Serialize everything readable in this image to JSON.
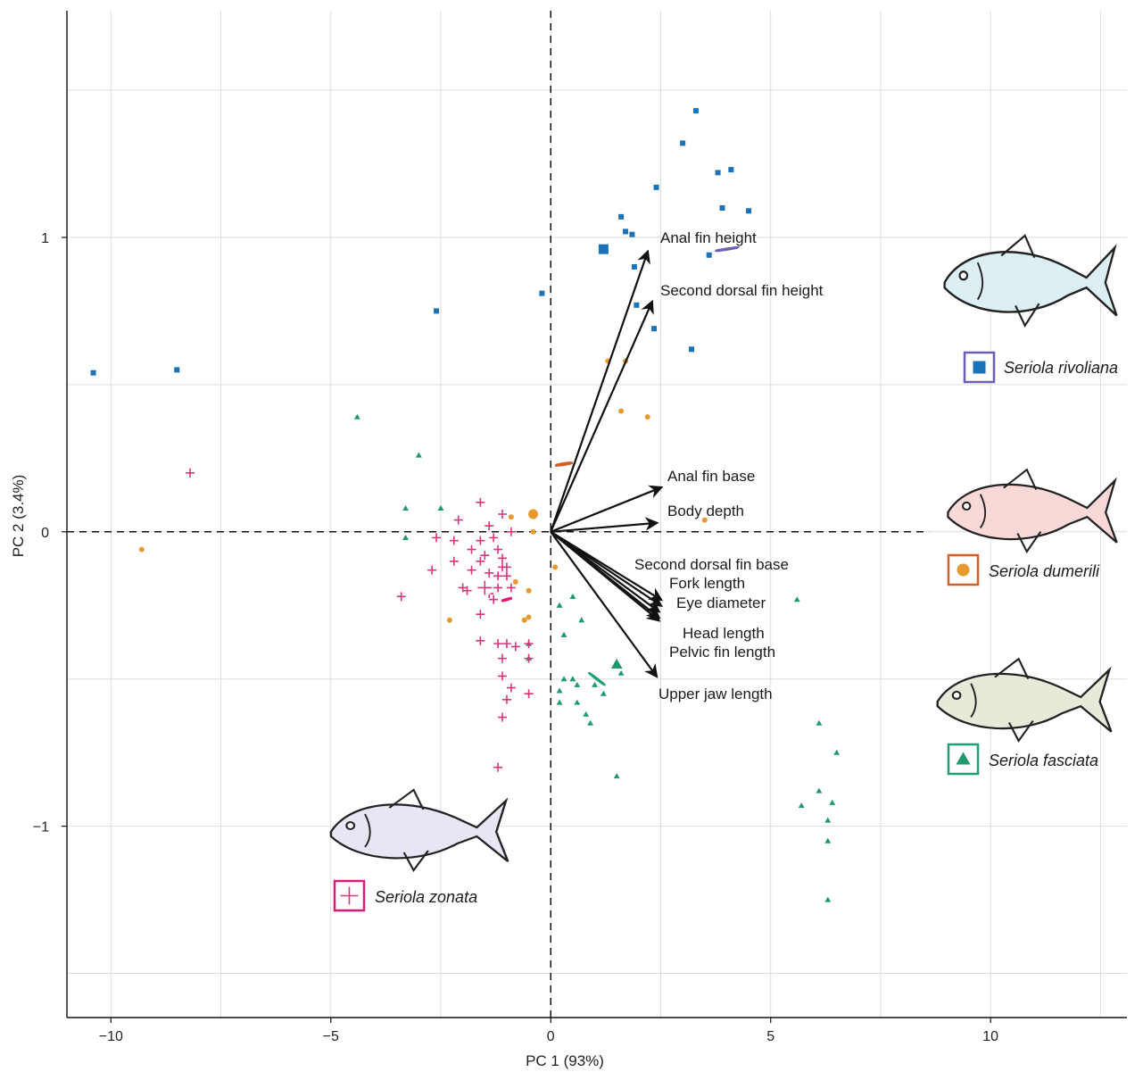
{
  "chart_data": {
    "type": "scatter",
    "xlabel": "PC 1 (93%)",
    "ylabel": "PC 2 (3.4%)",
    "xlim": [
      -11,
      13.1
    ],
    "ylim": [
      -1.65,
      1.77
    ],
    "x_ticks": [
      -10,
      -5,
      0,
      5,
      10
    ],
    "x_tick_labels": [
      "−10",
      "−5",
      "0",
      "5",
      "10"
    ],
    "y_ticks": [
      -1,
      0,
      1
    ],
    "y_tick_labels": [
      "−1",
      "0",
      "1"
    ],
    "grid": true,
    "reference_lines": [
      "x=0",
      "y=0"
    ],
    "series": [
      {
        "name": "Seriola rivoliana",
        "marker": "square",
        "color": "#1a72b8",
        "ellipse_color": "#6a5fb0",
        "ellipse_fill": "#d8eff4",
        "centroid": [
          1.2,
          0.96
        ],
        "ellipse": {
          "cx": 4.0,
          "cy": 0.96,
          "rx": 12.0,
          "ry": 0.42,
          "angle_deg": 8.8
        },
        "points": [
          [
            3.3,
            1.43
          ],
          [
            3.0,
            1.32
          ],
          [
            3.8,
            1.22
          ],
          [
            4.1,
            1.23
          ],
          [
            2.4,
            1.17
          ],
          [
            3.9,
            1.1
          ],
          [
            4.5,
            1.09
          ],
          [
            1.6,
            1.07
          ],
          [
            1.7,
            1.02
          ],
          [
            1.85,
            1.01
          ],
          [
            3.6,
            0.94
          ],
          [
            1.9,
            0.9
          ],
          [
            -0.2,
            0.81
          ],
          [
            1.95,
            0.77
          ],
          [
            2.35,
            0.69
          ],
          [
            3.2,
            0.62
          ],
          [
            -2.6,
            0.75
          ],
          [
            -8.5,
            0.55
          ],
          [
            -10.4,
            0.54
          ]
        ]
      },
      {
        "name": "Seriola dumerili",
        "marker": "circle",
        "color": "#e89a2e",
        "ellipse_color": "#d35f28",
        "ellipse_fill": "#fde3dc",
        "centroid": [
          -0.4,
          0.06
        ],
        "ellipse": {
          "cx": 0.3,
          "cy": 0.23,
          "rx": 8.7,
          "ry": 0.76,
          "angle_deg": 9.0
        },
        "points": [
          [
            1.3,
            0.58
          ],
          [
            1.7,
            0.58
          ],
          [
            1.6,
            0.41
          ],
          [
            2.2,
            0.39
          ],
          [
            3.5,
            0.04
          ],
          [
            -0.9,
            0.05
          ],
          [
            -0.4,
            0.0
          ],
          [
            -9.3,
            -0.06
          ],
          [
            0.1,
            -0.12
          ],
          [
            -0.8,
            -0.17
          ],
          [
            -0.5,
            -0.2
          ],
          [
            -0.5,
            -0.29
          ],
          [
            -0.6,
            -0.3
          ],
          [
            -2.3,
            -0.3
          ]
        ]
      },
      {
        "name": "Seriola fasciata",
        "marker": "triangle",
        "color": "#1f9a6b",
        "ellipse_color": "#1f9e77",
        "ellipse_fill": "#e8efde",
        "centroid": [
          1.5,
          -0.45
        ],
        "ellipse": {
          "cx": 1.05,
          "cy": -0.5,
          "rx": 10.6,
          "ry": 0.37,
          "angle_deg": -37.4
        },
        "points": [
          [
            -4.4,
            0.39
          ],
          [
            -3.0,
            0.26
          ],
          [
            -3.3,
            0.08
          ],
          [
            -2.5,
            0.08
          ],
          [
            -3.3,
            -0.02
          ],
          [
            0.5,
            -0.22
          ],
          [
            0.2,
            -0.25
          ],
          [
            0.7,
            -0.3
          ],
          [
            0.3,
            -0.35
          ],
          [
            -0.5,
            -0.38
          ],
          [
            -0.5,
            -0.43
          ],
          [
            1.6,
            -0.48
          ],
          [
            0.3,
            -0.5
          ],
          [
            0.5,
            -0.5
          ],
          [
            0.6,
            -0.52
          ],
          [
            1.0,
            -0.52
          ],
          [
            0.6,
            -0.58
          ],
          [
            0.2,
            -0.54
          ],
          [
            1.2,
            -0.55
          ],
          [
            0.2,
            -0.58
          ],
          [
            5.6,
            -0.23
          ],
          [
            0.8,
            -0.62
          ],
          [
            0.9,
            -0.65
          ],
          [
            1.5,
            -0.83
          ],
          [
            6.1,
            -0.65
          ],
          [
            6.5,
            -0.75
          ],
          [
            6.1,
            -0.88
          ],
          [
            6.4,
            -0.92
          ],
          [
            5.7,
            -0.93
          ],
          [
            6.3,
            -0.98
          ],
          [
            6.3,
            -1.05
          ],
          [
            6.3,
            -1.25
          ]
        ]
      },
      {
        "name": "Seriola zonata",
        "marker": "plus",
        "color": "#d9357d",
        "ellipse_color": "#e0187a",
        "ellipse_fill": "#e6d7d2",
        "centroid": [
          -1.5,
          -0.19
        ],
        "ellipse": {
          "cx": -1.0,
          "cy": -0.23,
          "rx": 5.1,
          "ry": 0.47,
          "angle_deg": 16.4
        },
        "points": [
          [
            -8.2,
            0.2
          ],
          [
            -1.6,
            0.1
          ],
          [
            -1.1,
            0.06
          ],
          [
            -2.1,
            0.04
          ],
          [
            -1.4,
            0.02
          ],
          [
            -0.9,
            0.0
          ],
          [
            -2.2,
            -0.03
          ],
          [
            -1.6,
            -0.03
          ],
          [
            -1.3,
            -0.02
          ],
          [
            -2.6,
            -0.02
          ],
          [
            -1.8,
            -0.06
          ],
          [
            -1.2,
            -0.06
          ],
          [
            -1.5,
            -0.08
          ],
          [
            -2.2,
            -0.1
          ],
          [
            -1.6,
            -0.1
          ],
          [
            -1.1,
            -0.09
          ],
          [
            -1.8,
            -0.13
          ],
          [
            -1.1,
            -0.12
          ],
          [
            -1.4,
            -0.14
          ],
          [
            -1.0,
            -0.12
          ],
          [
            -2.7,
            -0.13
          ],
          [
            -1.2,
            -0.15
          ],
          [
            -1.0,
            -0.15
          ],
          [
            -2.0,
            -0.19
          ],
          [
            -1.2,
            -0.19
          ],
          [
            -0.9,
            -0.19
          ],
          [
            -1.9,
            -0.2
          ],
          [
            -1.4,
            -0.21
          ],
          [
            -3.4,
            -0.22
          ],
          [
            -1.6,
            -0.28
          ],
          [
            -1.3,
            -0.23
          ],
          [
            -1.6,
            -0.37
          ],
          [
            -1.2,
            -0.38
          ],
          [
            -1.0,
            -0.38
          ],
          [
            -0.5,
            -0.38
          ],
          [
            -0.8,
            -0.39
          ],
          [
            -1.1,
            -0.43
          ],
          [
            -0.5,
            -0.43
          ],
          [
            -1.1,
            -0.49
          ],
          [
            -0.9,
            -0.53
          ],
          [
            -0.5,
            -0.55
          ],
          [
            -1.0,
            -0.57
          ],
          [
            -1.1,
            -0.63
          ],
          [
            -1.2,
            -0.8
          ]
        ]
      }
    ],
    "loadings": [
      {
        "label": "Anal fin height",
        "x": 2.2,
        "y": 0.95
      },
      {
        "label": "Second dorsal fin height",
        "x": 2.3,
        "y": 0.78
      },
      {
        "label": "Anal fin base",
        "x": 2.5,
        "y": 0.15
      },
      {
        "label": "Body depth",
        "x": 2.4,
        "y": 0.03
      },
      {
        "label": "Second dorsal fin base",
        "x": 2.5,
        "y": -0.23
      },
      {
        "label": "Fork length",
        "x": 2.5,
        "y": -0.25
      },
      {
        "label": "Eye diameter",
        "x": 2.45,
        "y": -0.27
      },
      {
        "label": "Head length",
        "x": 2.45,
        "y": -0.29
      },
      {
        "label": "Pelvic fin length",
        "x": 2.45,
        "y": -0.3
      },
      {
        "label": "Upper jaw length",
        "x": 2.4,
        "y": -0.49
      }
    ]
  }
}
